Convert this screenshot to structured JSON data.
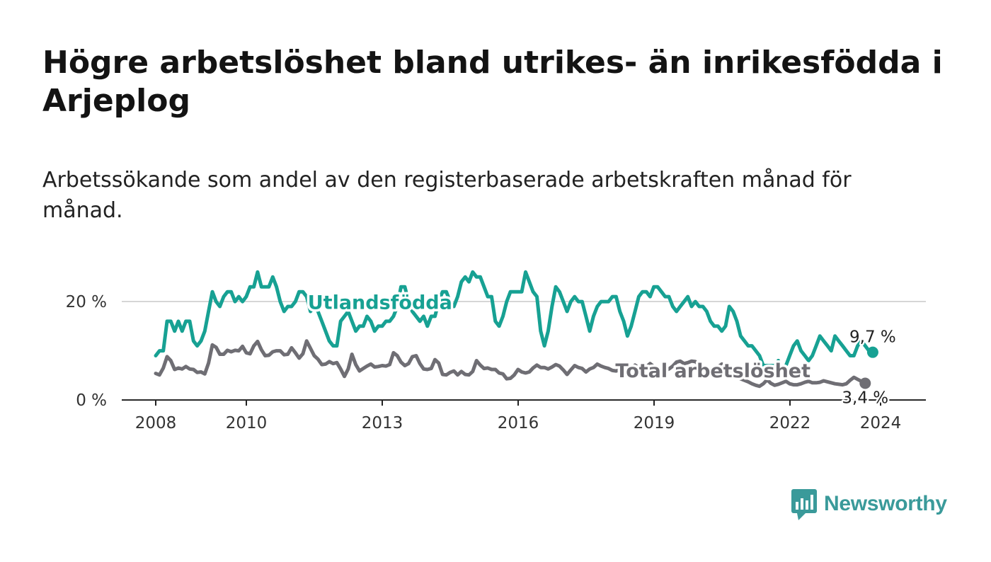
{
  "header": {
    "title": "Högre arbetslöshet bland utrikes- än inrikesfödda i Arjeplog",
    "subtitle": "Arbetssökande som andel av den registerbaserade arbetskraften månad för månad."
  },
  "chart_data": {
    "type": "line",
    "title": "Högre arbetslöshet bland utrikes- än inrikesfödda i Arjeplog",
    "subtitle": "Arbetssökande som andel av den registerbaserade arbetskraften månad för månad.",
    "xlim": [
      2007.25,
      2025.0
    ],
    "ylim": [
      -0.7,
      29.5
    ],
    "x_ticks": [
      2008,
      2010,
      2013,
      2016,
      2019,
      2022,
      2024
    ],
    "x_tick_labels": [
      "2008",
      "2010",
      "2013",
      "2016",
      "2019",
      "2022",
      "2024"
    ],
    "y_ticks": [
      0,
      20
    ],
    "y_tick_labels": [
      "0 %",
      "20 %"
    ],
    "grid": "horizontal",
    "x_start": 2008.0,
    "x_step": 0.0833,
    "series": [
      {
        "name": "Utlandsfödda",
        "color": "#17a193",
        "end_label": "9,7 %",
        "values": [
          9,
          10,
          10,
          16,
          16,
          14,
          16,
          14,
          16,
          16,
          12,
          11,
          12,
          14,
          18,
          22,
          20,
          19,
          21,
          22,
          22,
          20,
          21,
          20,
          21,
          23,
          23,
          26,
          23,
          23,
          23,
          25,
          23,
          20,
          18,
          19,
          19,
          20,
          22,
          22,
          21,
          18,
          19,
          18,
          16,
          14,
          12,
          11,
          11,
          16,
          17,
          18,
          16,
          14,
          15,
          15,
          17,
          16,
          14,
          15,
          15,
          16,
          16,
          17,
          19,
          23,
          23,
          20,
          18,
          17,
          16,
          17,
          15,
          17,
          17,
          20,
          22,
          22,
          20,
          19,
          21,
          24,
          25,
          24,
          26,
          25,
          25,
          23,
          21,
          21,
          16,
          15,
          17,
          20,
          22,
          22,
          22,
          22,
          26,
          24,
          22,
          21,
          14,
          11,
          14,
          19,
          23,
          22,
          20,
          18,
          20,
          21,
          20,
          20,
          17,
          14,
          17,
          19,
          20,
          20,
          20,
          21,
          21,
          18,
          16,
          13,
          15,
          18,
          21,
          22,
          22,
          21,
          23,
          23,
          22,
          21,
          21,
          19,
          18,
          19,
          20,
          21,
          19,
          20,
          19,
          19,
          18,
          16,
          15,
          15,
          14,
          15,
          19,
          18,
          16,
          13,
          12,
          11,
          11,
          10,
          9,
          7,
          7,
          7,
          7,
          8,
          6,
          7,
          9,
          11,
          12,
          10,
          9,
          8,
          9,
          11,
          13,
          12,
          11,
          10,
          13,
          12,
          11,
          10,
          9,
          9,
          11,
          12,
          11,
          10,
          9.7
        ]
      },
      {
        "name": "Total arbetslöshet",
        "color": "#6f6e74",
        "end_label": "3,4 %",
        "values": [
          5.4,
          5.1,
          6.5,
          8.8,
          8,
          6.2,
          6.5,
          6.3,
          6.8,
          6.3,
          6.2,
          5.6,
          5.7,
          5.3,
          7.5,
          11.2,
          10.7,
          9.3,
          9.3,
          10.1,
          9.8,
          10.1,
          10,
          10.9,
          9.6,
          9.4,
          11,
          11.9,
          10.2,
          9,
          9.1,
          9.8,
          10,
          10,
          9.2,
          9.3,
          10.6,
          9.6,
          8.5,
          9.4,
          12,
          10.5,
          9,
          8.3,
          7.2,
          7.3,
          7.8,
          7.4,
          7.6,
          6.3,
          4.8,
          6.3,
          9.3,
          7.2,
          5.9,
          6.4,
          6.9,
          7.3,
          6.7,
          6.8,
          7,
          6.9,
          7.2,
          9.6,
          9,
          7.7,
          7,
          7.4,
          8.8,
          9,
          7.4,
          6.3,
          6.2,
          6.4,
          8.2,
          7.5,
          5.2,
          5.1,
          5.6,
          5.9,
          5.1,
          5.8,
          5.2,
          5.1,
          5.8,
          8,
          7.1,
          6.4,
          6.5,
          6.2,
          6.2,
          5.5,
          5.3,
          4.3,
          4.4,
          5.1,
          6.2,
          5.7,
          5.5,
          5.7,
          6.5,
          7.1,
          6.6,
          6.6,
          6.3,
          6.7,
          7.2,
          6.9,
          6.1,
          5.2,
          6.1,
          7,
          6.6,
          6.4,
          5.7,
          6.3,
          6.6,
          7.3,
          6.9,
          6.6,
          6.4,
          6,
          5.9,
          6.1,
          5.8,
          5.6,
          6.3,
          7.1,
          6.5,
          6.4,
          6.7,
          7.4,
          6.8,
          6.6,
          6.2,
          6,
          6.3,
          6.9,
          7.7,
          7.9,
          7.4,
          7.6,
          7.9,
          7.8,
          7.1,
          6.6,
          6.1,
          5.5,
          5.9,
          6.7,
          7.3,
          6.3,
          5.8,
          5.1,
          4.7,
          4.3,
          4,
          3.7,
          3.3,
          3,
          2.8,
          3.3,
          4.1,
          3.4,
          3,
          3.2,
          3.5,
          3.8,
          3.3,
          3.1,
          3.1,
          3.3,
          3.6,
          3.8,
          3.5,
          3.5,
          3.6,
          3.9,
          3.7,
          3.5,
          3.3,
          3.2,
          3.1,
          3.3,
          4,
          4.6,
          4.2,
          3.8,
          3.4
        ]
      }
    ],
    "annotations": [
      {
        "text": "Utlandsfödda",
        "x": 2012.95,
        "y": 18.5,
        "color": "#17a193"
      },
      {
        "text": "Total arbetslöshet",
        "x": 2020.3,
        "y": 4.6,
        "color": "#6f6e74"
      }
    ]
  },
  "logo": {
    "text": "Newsworthy",
    "icon": "bar-chart-speech-bubble-icon",
    "color": "#3a9a9a"
  }
}
